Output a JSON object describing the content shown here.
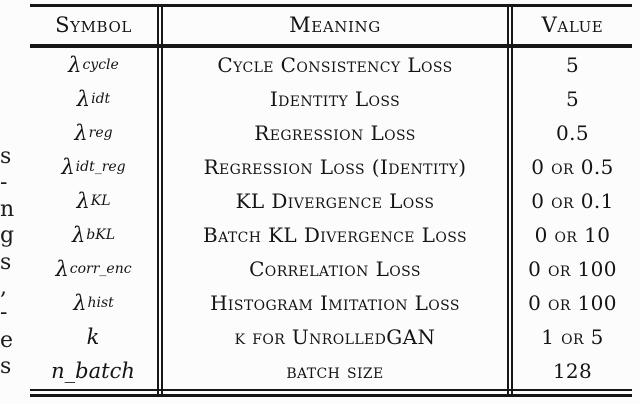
{
  "page": {
    "background": "#fcfcfc",
    "text_color": "#141414",
    "rule_color": "#161616"
  },
  "margin_fragments": [
    "s",
    "-",
    "n",
    "g",
    "s",
    ",",
    "-",
    "e",
    "s"
  ],
  "table": {
    "headers": [
      "Symbol",
      "Meaning",
      "Value"
    ],
    "rows": [
      {
        "symbol_base": "λ",
        "symbol_sub": "cycle",
        "meaning": "Cycle Consistency Loss",
        "value": "5"
      },
      {
        "symbol_base": "λ",
        "symbol_sub": "idt",
        "meaning": "Identity Loss",
        "value": "5"
      },
      {
        "symbol_base": "λ",
        "symbol_sub": "reg",
        "meaning": "Regression Loss",
        "value": "0.5"
      },
      {
        "symbol_base": "λ",
        "symbol_sub": "idt_reg",
        "meaning": "Regression Loss (Identity)",
        "value": "0 or 0.5"
      },
      {
        "symbol_base": "λ",
        "symbol_sub": "KL",
        "meaning": "KL Divergence Loss",
        "value": "0 or 0.1"
      },
      {
        "symbol_base": "λ",
        "symbol_sub": "bKL",
        "meaning": "Batch KL Divergence Loss",
        "value": "0 or 10"
      },
      {
        "symbol_base": "λ",
        "symbol_sub": "corr_enc",
        "meaning": "Correlation Loss",
        "value": "0 or 100"
      },
      {
        "symbol_base": "λ",
        "symbol_sub": "hist",
        "meaning": "Histogram Imitation Loss",
        "value": "0 or 100"
      },
      {
        "symbol_base": "k",
        "symbol_sub": "",
        "meaning": "k for UnrolledGAN",
        "value": "1 or 5"
      },
      {
        "symbol_base": "n_batch",
        "symbol_sub": "",
        "meaning": "batch size",
        "value": "128"
      }
    ]
  }
}
